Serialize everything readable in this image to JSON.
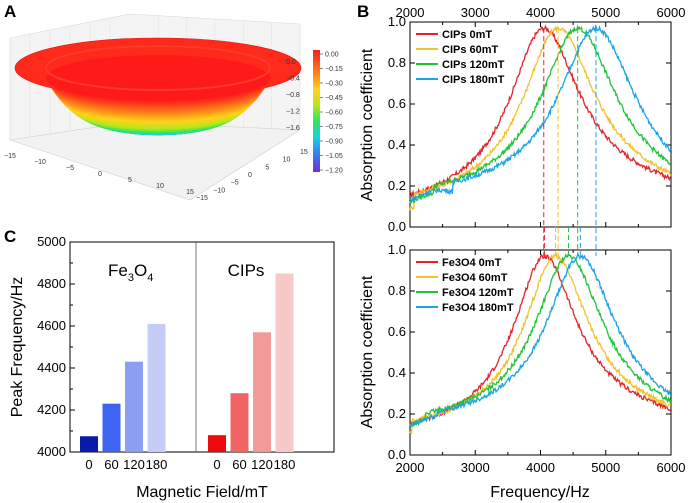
{
  "panels": {
    "a": "A",
    "b": "B",
    "c": "C"
  },
  "chart_data": [
    {
      "panel": "A",
      "type": "surface3d",
      "x_ticks": [
        "−15",
        "−10",
        "−5",
        "0",
        "5",
        "10",
        "15"
      ],
      "y_ticks": [
        "−15",
        "−10",
        "−5",
        "0",
        "5",
        "10",
        "15"
      ],
      "colorbar_ticks": [
        "0.00",
        "−0.15",
        "−0.30",
        "−0.45",
        "−0.60",
        "−0.75",
        "−0.90",
        "−1.05",
        "−1.20"
      ],
      "z_ticks": [
        "0.0",
        "−0.4",
        "−0.8",
        "−1.2",
        "−1.6"
      ],
      "colors": {
        "top": "#ff2a1a",
        "bottom": "#4a2dd8"
      }
    },
    {
      "panel": "B-top",
      "type": "line",
      "xlabel_top_ticks": [
        "2000",
        "3000",
        "4000",
        "5000",
        "6000"
      ],
      "ylabel": "Absorption coefficient",
      "xlim": [
        2000,
        6000
      ],
      "ylim": [
        0,
        1.0
      ],
      "y_ticks": [
        "0.0",
        "0.2",
        "0.4",
        "0.6",
        "0.8",
        "1.0"
      ],
      "series": [
        {
          "name": "CIPs 0mT",
          "color": "#e3242b",
          "peak": 4050,
          "low": 0.08,
          "w": 800
        },
        {
          "name": "CIPs 60mT",
          "color": "#f2c12e",
          "peak": 4270,
          "low": 0.09,
          "w": 820
        },
        {
          "name": "CIPs 120mT",
          "color": "#22c33a",
          "peak": 4570,
          "low": 0.12,
          "w": 850
        },
        {
          "name": "CIPs 180mT",
          "color": "#1aa3e8",
          "peak": 4850,
          "low": 0.13,
          "w": 870
        }
      ]
    },
    {
      "panel": "B-bottom",
      "type": "line",
      "xlabel": "Frequency/Hz",
      "ylabel": "Absorption coefficient",
      "xlim": [
        2000,
        6000
      ],
      "ylim": [
        0,
        1.0
      ],
      "x_ticks": [
        "2000",
        "3000",
        "4000",
        "5000",
        "6000"
      ],
      "y_ticks": [
        "0.0",
        "0.2",
        "0.4",
        "0.6",
        "0.8",
        "1.0"
      ],
      "series": [
        {
          "name": "Fe3O4 0mT",
          "color": "#e3242b",
          "peak": 4060,
          "low": 0.09,
          "w": 720
        },
        {
          "name": "Fe3O4 60mT",
          "color": "#f2c12e",
          "peak": 4230,
          "low": 0.11,
          "w": 730
        },
        {
          "name": "Fe3O4 120mT",
          "color": "#22c33a",
          "peak": 4430,
          "low": 0.14,
          "w": 760
        },
        {
          "name": "Fe3O4 180mT",
          "color": "#1aa3e8",
          "peak": 4610,
          "low": 0.14,
          "w": 780
        }
      ]
    },
    {
      "panel": "C",
      "type": "bar",
      "ylabel": "Peak Frequency/Hz",
      "xlabel": "Magnetic Field/mT",
      "ylim": [
        4000,
        5000
      ],
      "y_ticks": [
        "4000",
        "4200",
        "4400",
        "4600",
        "4800",
        "5000"
      ],
      "groups": [
        {
          "label_main": "Fe",
          "label_sub1": "3",
          "label_mid": "O",
          "label_sub2": "4",
          "categories": [
            "0",
            "60",
            "120",
            "180"
          ],
          "values": [
            4075,
            4230,
            4430,
            4610
          ],
          "colors": [
            "#0a1aa8",
            "#3d64f0",
            "#8a9ef2",
            "#c5cdf7"
          ]
        },
        {
          "label_main": "CIPs",
          "categories": [
            "0",
            "60",
            "120",
            "180"
          ],
          "values": [
            4080,
            4280,
            4570,
            4850
          ],
          "colors": [
            "#ee0a0a",
            "#f06464",
            "#f29a9a",
            "#f7c8c8"
          ]
        }
      ]
    }
  ]
}
